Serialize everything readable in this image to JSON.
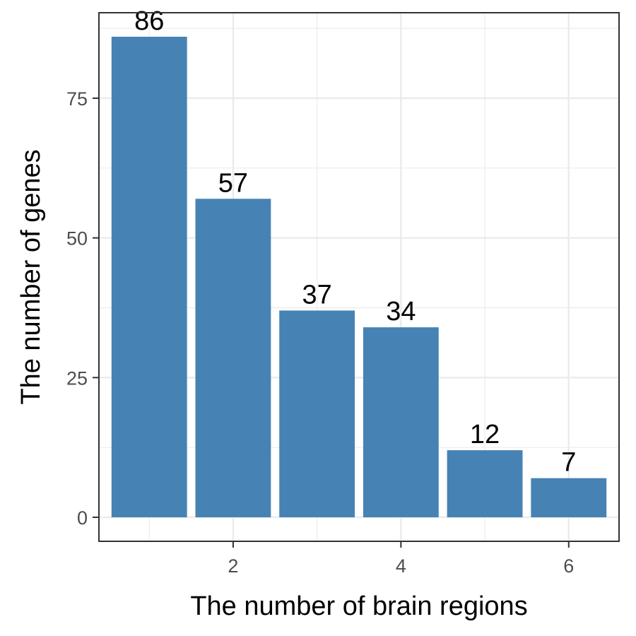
{
  "chart_data": {
    "type": "bar",
    "title": "",
    "xlabel": "The number of brain regions",
    "ylabel": "The number of genes",
    "x": [
      1,
      2,
      3,
      4,
      5,
      6
    ],
    "values": [
      86,
      57,
      37,
      34,
      12,
      7
    ],
    "data_labels": [
      "86",
      "57",
      "37",
      "34",
      "12",
      "7"
    ],
    "xlim": [
      0.4,
      6.6
    ],
    "ylim": [
      -4.3,
      90.3
    ],
    "x_ticks": [
      2,
      4,
      6
    ],
    "x_tick_labels": [
      "2",
      "4",
      "6"
    ],
    "y_ticks": [
      0,
      25,
      50,
      75
    ],
    "y_tick_labels": [
      "0",
      "25",
      "50",
      "75"
    ],
    "bar_color": "#4682b4",
    "grid": true,
    "grid_color": "#ebebeb",
    "panel_border_color": "#333333",
    "legend": "none"
  }
}
